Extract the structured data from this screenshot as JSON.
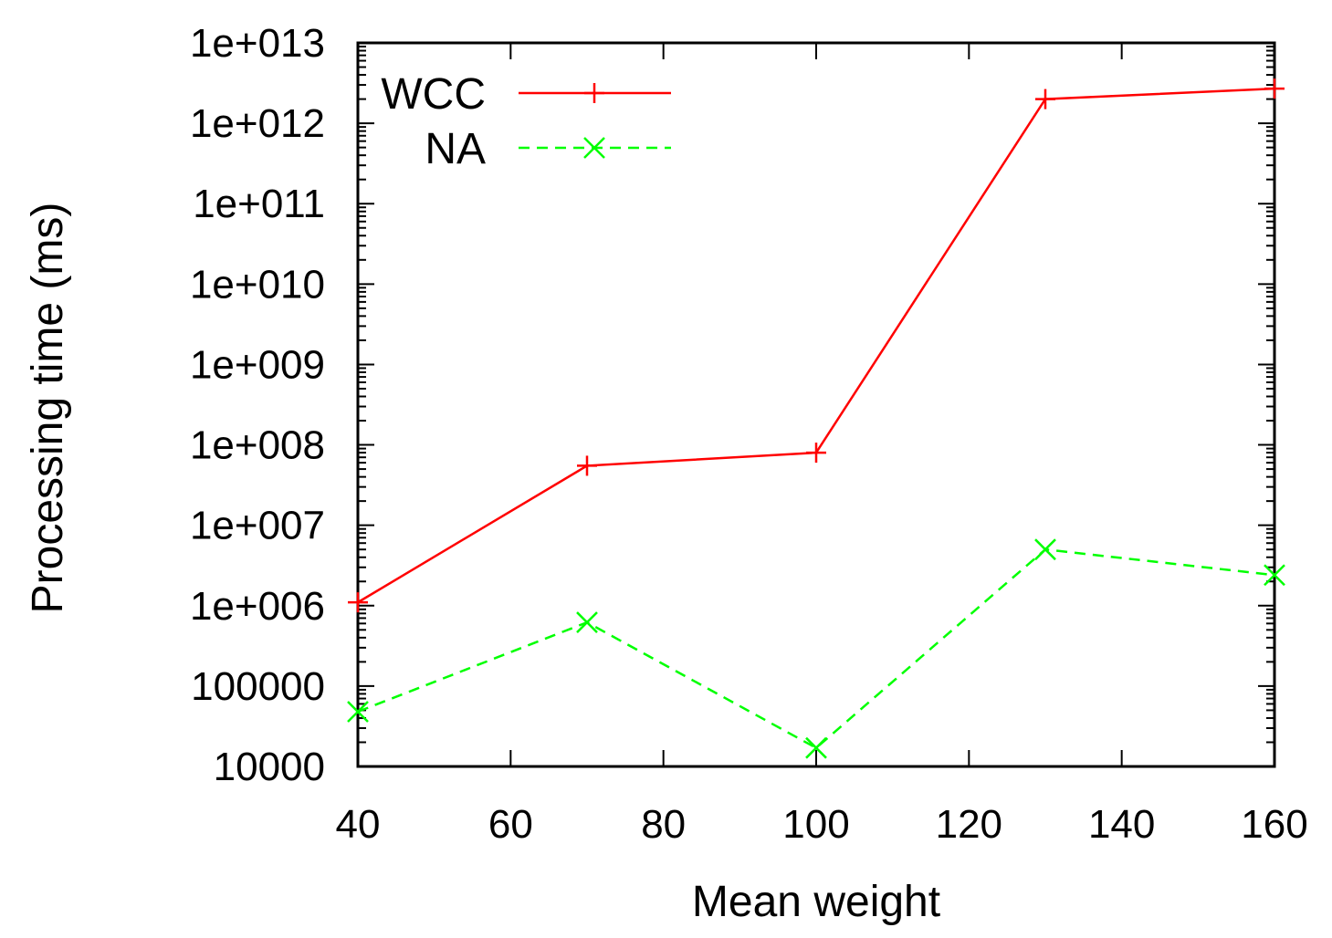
{
  "chart_data": {
    "type": "line",
    "title": "",
    "xlabel": "Mean weight",
    "ylabel": "Processing time (ms)",
    "y_scale": "log",
    "xlim": [
      40,
      160
    ],
    "ylim": [
      10000,
      10000000000000
    ],
    "x_ticks": [
      40,
      60,
      80,
      100,
      120,
      140,
      160
    ],
    "x_tick_labels": [
      "40",
      "60",
      "80",
      "100",
      "120",
      "140",
      "160"
    ],
    "y_ticks": [
      10000,
      100000,
      1000000,
      10000000,
      100000000,
      1000000000,
      10000000000,
      100000000000,
      1000000000000,
      10000000000000
    ],
    "y_tick_labels": [
      "10000",
      "100000",
      "1e+006",
      "1e+007",
      "1e+008",
      "1e+009",
      "1e+010",
      "1e+011",
      "1e+012",
      "1e+013"
    ],
    "grid": false,
    "legend_position": "top-left",
    "series": [
      {
        "name": "WCC",
        "color": "#ff0000",
        "dash": "solid",
        "marker": "plus",
        "x": [
          40,
          70,
          100,
          130,
          160
        ],
        "y": [
          1100000,
          55000000,
          80000000,
          2000000000000,
          2700000000000
        ]
      },
      {
        "name": "NA",
        "color": "#00ff00",
        "dash": "dashed",
        "marker": "cross",
        "x": [
          40,
          70,
          100,
          130,
          160
        ],
        "y": [
          48000,
          620000,
          17000,
          5000000,
          2400000
        ]
      }
    ]
  }
}
